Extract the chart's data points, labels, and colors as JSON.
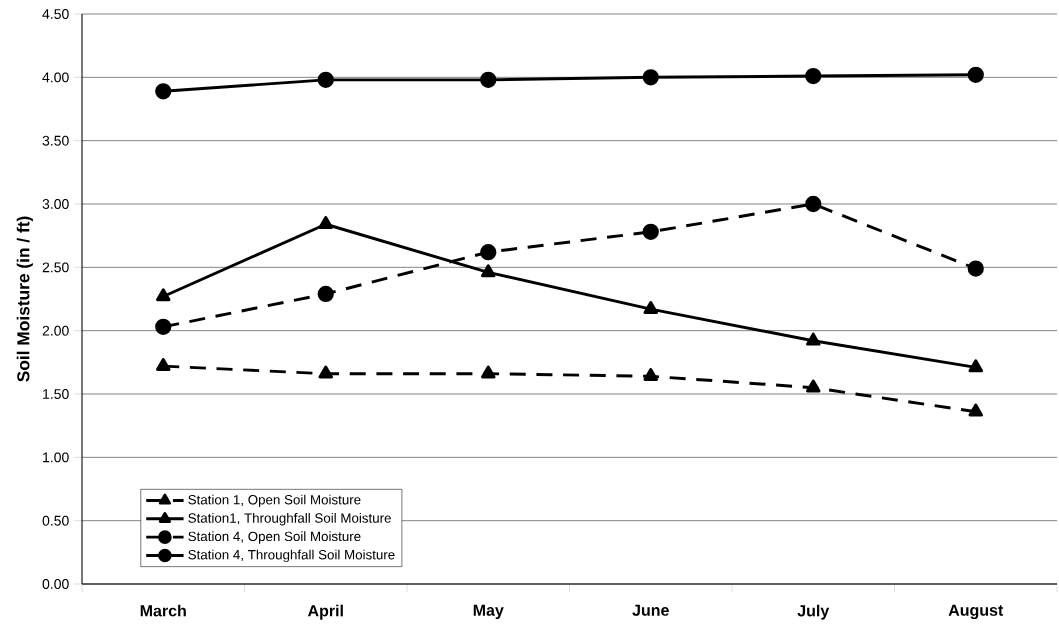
{
  "chart_data": {
    "type": "line",
    "ylabel": "Soil Moisture  (in / ft)",
    "categories": [
      "March",
      "April",
      "May",
      "June",
      "July",
      "August"
    ],
    "series": [
      {
        "name": "Station 1, Open Soil Moisture",
        "color": "#000000",
        "marker": "triangle",
        "line_style": "dashed",
        "values": [
          1.72,
          1.66,
          1.66,
          1.64,
          1.55,
          1.36
        ]
      },
      {
        "name": "Station1, Throughfall Soil Moisture",
        "color": "#000000",
        "marker": "triangle",
        "line_style": "solid",
        "values": [
          2.27,
          2.84,
          2.46,
          2.17,
          1.92,
          1.71
        ]
      },
      {
        "name": "Station 4, Open Soil Moisture",
        "color": "#000000",
        "marker": "circle",
        "line_style": "dashed",
        "values": [
          2.03,
          2.29,
          2.62,
          2.78,
          3.0,
          2.49
        ]
      },
      {
        "name": "Station 4, Throughfall Soil Moisture",
        "color": "#000000",
        "marker": "circle",
        "line_style": "solid",
        "values": [
          3.89,
          3.98,
          3.98,
          4.0,
          4.01,
          4.02
        ]
      }
    ],
    "ylim": [
      0,
      4.5
    ],
    "yticks": [
      {
        "value": 0,
        "label": "0.00"
      },
      {
        "value": 0.5,
        "label": "0.50"
      },
      {
        "value": 1,
        "label": "1.00"
      },
      {
        "value": 1.5,
        "label": "1.50"
      },
      {
        "value": 2,
        "label": "2.00"
      },
      {
        "value": 2.5,
        "label": "2.50"
      },
      {
        "value": 3,
        "label": "3.00"
      },
      {
        "value": 3.5,
        "label": "3.50"
      },
      {
        "value": 4,
        "label": "4.00"
      },
      {
        "value": 4.5,
        "label": "4.50"
      }
    ],
    "grid": "y",
    "legend": "bottom left"
  }
}
